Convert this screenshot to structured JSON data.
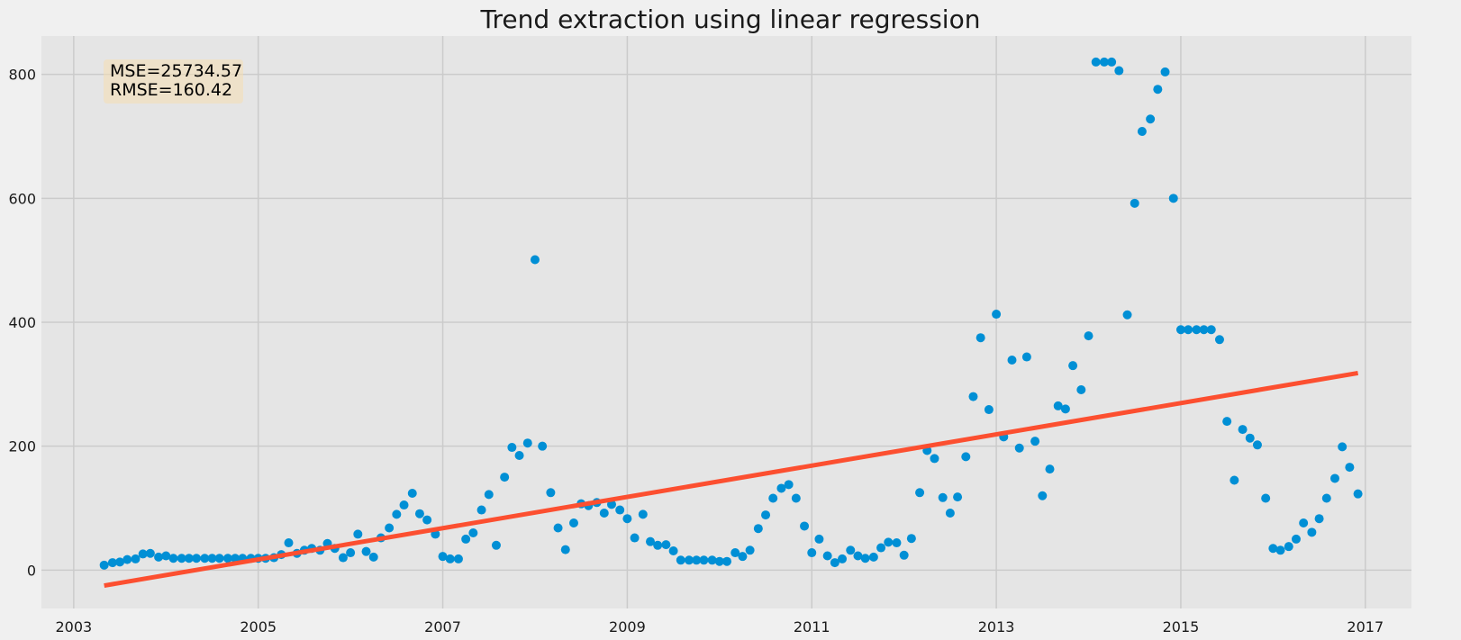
{
  "chart_data": {
    "type": "scatter",
    "title": "Trend extraction using linear regression",
    "xlabel": "",
    "ylabel": "",
    "xlim": [
      2002.65,
      2017.5
    ],
    "ylim": [
      -62,
      862
    ],
    "grid": true,
    "colors": {
      "figure_bg": "#f0f0f0",
      "plot_bg": "#e5e5e5",
      "grid": "#cbcbcb",
      "points": "#008fd5",
      "trend": "#fc4f30",
      "annotation_bg": "#f5deb3"
    },
    "x_ticks": [
      {
        "value": 2003,
        "label": "2003"
      },
      {
        "value": 2005,
        "label": "2005"
      },
      {
        "value": 2007,
        "label": "2007"
      },
      {
        "value": 2009,
        "label": "2009"
      },
      {
        "value": 2011,
        "label": "2011"
      },
      {
        "value": 2013,
        "label": "2013"
      },
      {
        "value": 2015,
        "label": "2015"
      },
      {
        "value": 2017,
        "label": "2017"
      }
    ],
    "y_ticks": [
      {
        "value": 0,
        "label": "0"
      },
      {
        "value": 200,
        "label": "200"
      },
      {
        "value": 400,
        "label": "400"
      },
      {
        "value": 600,
        "label": "600"
      },
      {
        "value": 800,
        "label": "800"
      }
    ],
    "annotation": [
      "MSE=25734.57",
      "RMSE=160.42"
    ],
    "trend_line": {
      "x": [
        2003.33,
        2016.92
      ],
      "y": [
        -25,
        318
      ]
    },
    "series": [
      {
        "x": [
          2003.33,
          2003.42,
          2003.5,
          2003.58,
          2003.67,
          2003.75,
          2003.83,
          2003.92,
          2004.0,
          2004.08,
          2004.17,
          2004.25,
          2004.33,
          2004.42,
          2004.5,
          2004.58,
          2004.67,
          2004.75,
          2004.83,
          2004.92,
          2005.0,
          2005.08,
          2005.17,
          2005.25,
          2005.33,
          2005.42,
          2005.5,
          2005.58,
          2005.67,
          2005.75,
          2005.83,
          2005.92,
          2006.0,
          2006.08,
          2006.17,
          2006.25,
          2006.33,
          2006.42,
          2006.5,
          2006.58,
          2006.67,
          2006.75,
          2006.83,
          2006.92,
          2007.0,
          2007.08,
          2007.17,
          2007.25,
          2007.33,
          2007.42,
          2007.5,
          2007.58,
          2007.67,
          2007.75,
          2007.83,
          2007.92,
          2008.0,
          2008.08,
          2008.17,
          2008.25,
          2008.33,
          2008.42,
          2008.5,
          2008.58,
          2008.67,
          2008.75,
          2008.83,
          2008.92,
          2009.0,
          2009.08,
          2009.17,
          2009.25,
          2009.33,
          2009.42,
          2009.5,
          2009.58,
          2009.67,
          2009.75,
          2009.83,
          2009.92,
          2010.0,
          2010.08,
          2010.17,
          2010.25,
          2010.33,
          2010.42,
          2010.5,
          2010.58,
          2010.67,
          2010.75,
          2010.83,
          2010.92,
          2011.0,
          2011.08,
          2011.17,
          2011.25,
          2011.33,
          2011.42,
          2011.5,
          2011.58,
          2011.67,
          2011.75,
          2011.83,
          2011.92,
          2012.0,
          2012.08,
          2012.17,
          2012.25,
          2012.33,
          2012.42,
          2012.5,
          2012.58,
          2012.67,
          2012.75,
          2012.83,
          2012.92,
          2013.0,
          2013.08,
          2013.17,
          2013.25,
          2013.33,
          2013.42,
          2013.5,
          2013.58,
          2013.67,
          2013.75,
          2013.83,
          2013.92,
          2014.0,
          2014.08,
          2014.17,
          2014.25,
          2014.33,
          2014.42,
          2014.5,
          2014.58,
          2014.67,
          2014.75,
          2014.83,
          2014.92,
          2015.0,
          2015.08,
          2015.17,
          2015.25,
          2015.33,
          2015.42,
          2015.5,
          2015.58,
          2015.67,
          2015.75,
          2015.83,
          2015.92,
          2016.0,
          2016.08,
          2016.17,
          2016.25,
          2016.33,
          2016.42,
          2016.5,
          2016.58,
          2016.67,
          2016.75,
          2016.83,
          2016.92
        ],
        "y": [
          8,
          12,
          13,
          17,
          18,
          26,
          27,
          21,
          23,
          19,
          19,
          19,
          19,
          19,
          19,
          19,
          19,
          19,
          19,
          19,
          19,
          19,
          20,
          25,
          44,
          27,
          32,
          35,
          32,
          43,
          35,
          20,
          28,
          58,
          30,
          21,
          52,
          68,
          90,
          105,
          124,
          91,
          81,
          58,
          22,
          18,
          18,
          50,
          60,
          97,
          122,
          40,
          150,
          198,
          185,
          205,
          501,
          200,
          125,
          68,
          33,
          76,
          107,
          104,
          109,
          92,
          106,
          97,
          83,
          52,
          90,
          46,
          40,
          41,
          31,
          16,
          16,
          16,
          16,
          16,
          14,
          14,
          28,
          22,
          32,
          67,
          89,
          116,
          132,
          138,
          116,
          71,
          28,
          50,
          23,
          12,
          18,
          32,
          23,
          19,
          21,
          36,
          45,
          44,
          24,
          51,
          125,
          193,
          180,
          117,
          92,
          118,
          183,
          280,
          375,
          259,
          413,
          215,
          339,
          197,
          344,
          208,
          120,
          163,
          265,
          260,
          330,
          291,
          378,
          820,
          820,
          820,
          806,
          412,
          592,
          708,
          728,
          776,
          804,
          600,
          388,
          388,
          388,
          388,
          388,
          372,
          240,
          145,
          227,
          213,
          202,
          116,
          35,
          32,
          38,
          50,
          76,
          61,
          83,
          116,
          148,
          199,
          166,
          123
        ]
      }
    ]
  }
}
